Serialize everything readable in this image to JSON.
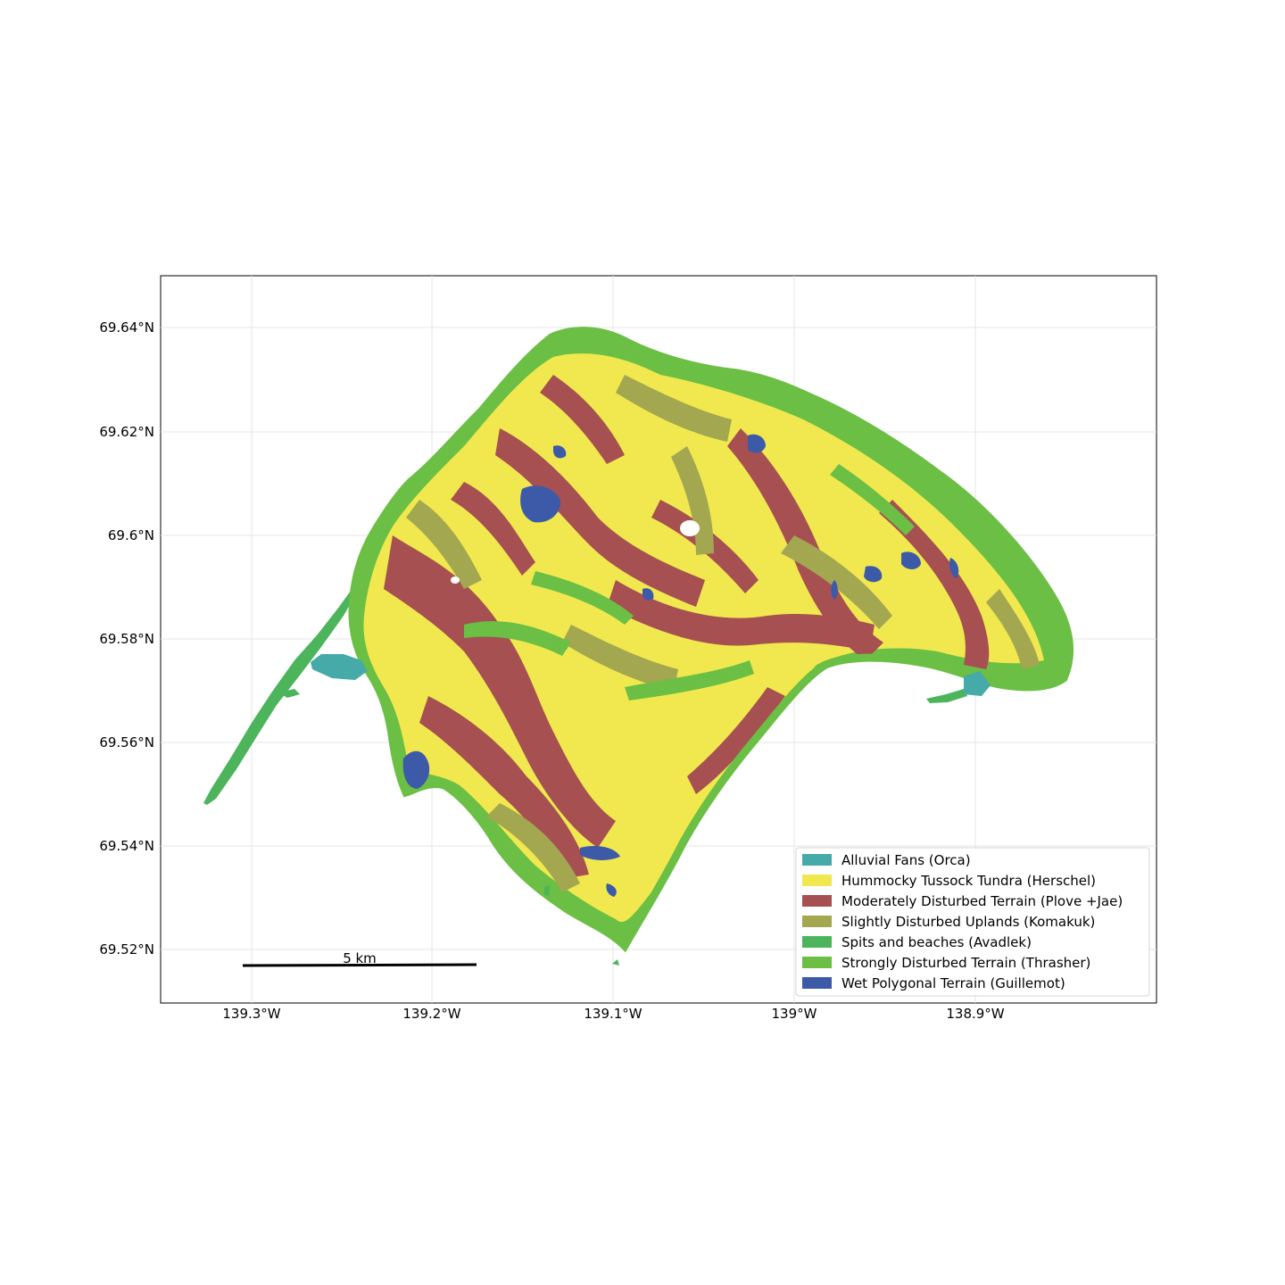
{
  "map": {
    "lat_ticks": [
      "69.64°N",
      "69.62°N",
      "69.6°N",
      "69.58°N",
      "69.56°N",
      "69.54°N",
      "69.52°N"
    ],
    "lon_ticks": [
      "139.3°W",
      "139.2°W",
      "139.1°W",
      "139°W",
      "138.9°W"
    ],
    "scale_bar_label": "5 km",
    "legend": [
      {
        "label": "Alluvial Fans (Orca)",
        "color": "#45aaa8"
      },
      {
        "label": "Hummocky Tussock Tundra (Herschel)",
        "color": "#f0e84e"
      },
      {
        "label": "Moderately Disturbed Terrain (Plove +Jae)",
        "color": "#a65052"
      },
      {
        "label": "Slightly Disturbed Uplands (Komakuk)",
        "color": "#a3a750"
      },
      {
        "label": "Spits and beaches (Avadlek)",
        "color": "#4cb45b"
      },
      {
        "label": "Strongly Disturbed Terrain (Thrasher)",
        "color": "#6abf44"
      },
      {
        "label": "Wet Polygonal Terrain (Guillemot)",
        "color": "#3d5aa8"
      }
    ]
  }
}
